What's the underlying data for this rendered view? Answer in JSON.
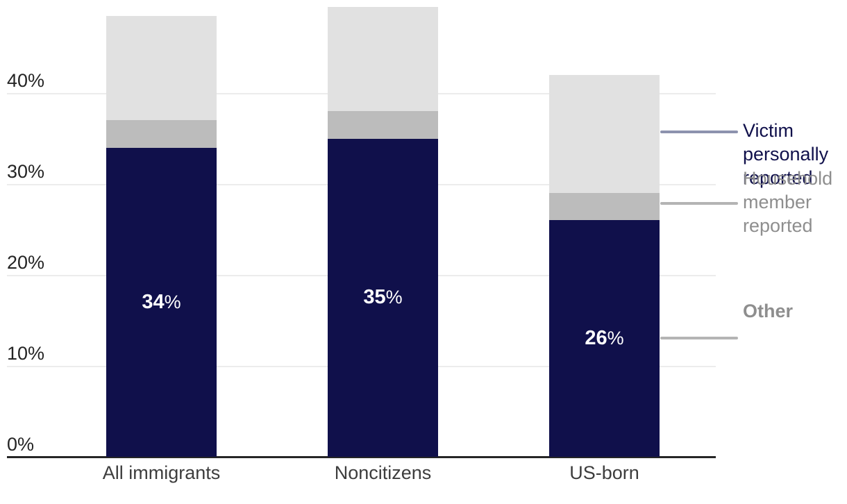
{
  "chart_data": {
    "type": "bar",
    "stacked": true,
    "categories": [
      "All immigrants",
      "Noncitizens",
      "US-born"
    ],
    "series": [
      {
        "name": "Victim personally reported",
        "values": [
          34,
          35,
          26
        ],
        "data_labels": [
          "34",
          "35",
          "26"
        ],
        "label_suffix": "%",
        "color": "#10104b"
      },
      {
        "name": "Household member reported",
        "values": [
          3,
          3,
          3
        ],
        "color": "#bcbcbc"
      },
      {
        "name": "Other",
        "values": [
          11.5,
          11.5,
          13
        ],
        "color": "#e1e1e1"
      }
    ],
    "totals_estimated": [
      48.5,
      49.5,
      42
    ],
    "y_axis": {
      "tick_labels": [
        "0%",
        "10%",
        "20%",
        "30%",
        "40%"
      ],
      "tick_values": [
        0,
        10,
        20,
        30,
        40
      ],
      "range": [
        0,
        50
      ],
      "grid": true
    },
    "legend_position": "right",
    "background_color": "#ffffff"
  },
  "legend": {
    "items": [
      {
        "label": "Other",
        "text_color": "#8e8e8e",
        "line_color": "#b4b4b4",
        "bold": false
      },
      {
        "label": "Household member reported",
        "text_color": "#8e8e8e",
        "line_color": "#b4b4b4",
        "bold": false
      },
      {
        "label": "Victim personally reported",
        "text_color": "#10104b",
        "line_color": "#8d93ae",
        "bold": true
      }
    ]
  }
}
